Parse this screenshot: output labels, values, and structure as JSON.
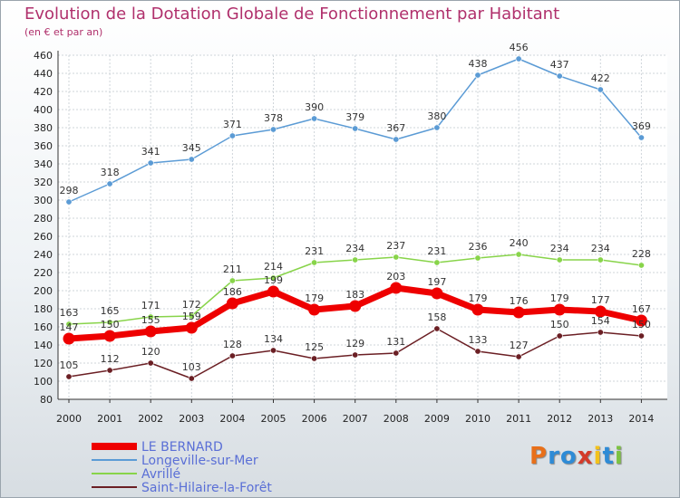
{
  "title": "Evolution de la Dotation Globale de Fonctionnement par Habitant",
  "subtitle": "(en € et par an)",
  "logo": "Proxiti",
  "colors": {
    "title": "#b0306c",
    "axis": "#333333",
    "grid": "#cfd5da"
  },
  "chart_data": {
    "type": "line",
    "title": "Evolution de la Dotation Globale de Fonctionnement par Habitant",
    "subtitle": "(en € et par an)",
    "xlabel": "",
    "ylabel": "",
    "ylim": [
      80,
      460
    ],
    "yticks": [
      80,
      100,
      120,
      140,
      160,
      180,
      200,
      220,
      240,
      260,
      280,
      300,
      320,
      340,
      360,
      380,
      400,
      420,
      440,
      460
    ],
    "grid": true,
    "legend_position": "bottom-left",
    "categories": [
      "2000",
      "2001",
      "2002",
      "2003",
      "2004",
      "2005",
      "2006",
      "2007",
      "2008",
      "2009",
      "2010",
      "2011",
      "2012",
      "2013",
      "2014"
    ],
    "series": [
      {
        "name": "LE BERNARD",
        "color": "#ee0000",
        "width": 7,
        "values": [
          147,
          150,
          155,
          159,
          186,
          199,
          179,
          183,
          203,
          197,
          179,
          176,
          179,
          177,
          167
        ],
        "labels": [
          "147",
          "150",
          "155",
          "159",
          "186",
          "199",
          "179",
          "183",
          "203",
          "197",
          "179",
          "176",
          "179",
          "177",
          "167"
        ]
      },
      {
        "name": "Longeville-sur-Mer",
        "color": "#5b9bd5",
        "width": 1.5,
        "values": [
          298,
          318,
          341,
          345,
          371,
          378,
          390,
          379,
          367,
          380,
          438,
          456,
          437,
          422,
          369
        ],
        "labels": [
          "298",
          "318",
          "341",
          "345",
          "371",
          "378",
          "390",
          "379",
          "367",
          "380",
          "438",
          "456",
          "437",
          "422",
          "369"
        ]
      },
      {
        "name": "Avrillé",
        "color": "#88d44a",
        "width": 1.5,
        "values": [
          163,
          165,
          171,
          172,
          211,
          214,
          231,
          234,
          237,
          231,
          236,
          240,
          234,
          234,
          228
        ],
        "labels": [
          "163",
          "165",
          "171",
          "172",
          "211",
          "214",
          "231",
          "234",
          "237",
          "231",
          "236",
          "240",
          "234",
          "234",
          "228"
        ]
      },
      {
        "name": "Saint-Hilaire-la-Forêt",
        "color": "#6b1f24",
        "width": 1.5,
        "values": [
          105,
          112,
          120,
          103,
          128,
          134,
          125,
          129,
          131,
          158,
          133,
          127,
          150,
          154,
          150
        ],
        "labels": [
          "105",
          "112",
          "120",
          "103",
          "128",
          "134",
          "125",
          "129",
          "131",
          "158",
          "133",
          "127",
          "150",
          "154",
          "150"
        ]
      }
    ]
  }
}
